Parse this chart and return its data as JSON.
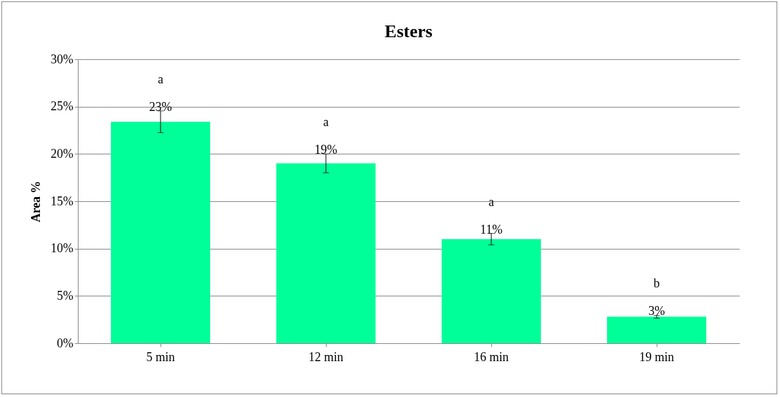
{
  "chart_data": {
    "type": "bar",
    "title": "Esters",
    "ylabel": "Area %",
    "categories": [
      "5 min",
      "12 min",
      "16 min",
      "19 min"
    ],
    "values": [
      23.4,
      19.0,
      11.0,
      2.8
    ],
    "errors": [
      1.15,
      1.0,
      0.6,
      0.15
    ],
    "value_labels": [
      "23%",
      "19%",
      "11%",
      "3%"
    ],
    "color": "#00ff99",
    "ylim": [
      0,
      30
    ],
    "yticks": [
      {
        "value": 0,
        "label": "0%"
      },
      {
        "value": 5,
        "label": "5%"
      },
      {
        "value": 10,
        "label": "10%"
      },
      {
        "value": 15,
        "label": "15%"
      },
      {
        "value": 20,
        "label": "20%"
      },
      {
        "value": 25,
        "label": "25%"
      },
      {
        "value": 30,
        "label": "30%"
      }
    ],
    "annotations": [
      "a",
      "a",
      "a",
      "b"
    ],
    "grid": "y"
  }
}
